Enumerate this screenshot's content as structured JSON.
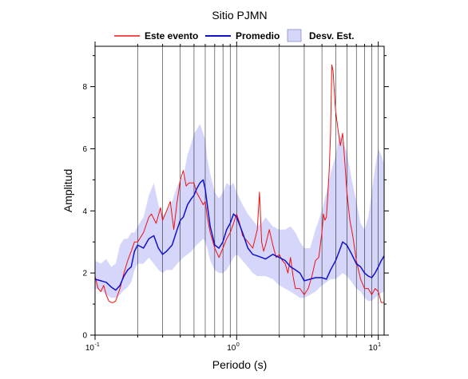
{
  "chart_data": {
    "type": "line",
    "title": "Sitio PJMN",
    "xlabel": "Periodo (s)",
    "ylabel": "Amplitud",
    "xscale": "log",
    "xlim": [
      0.1,
      11
    ],
    "ylim": [
      0,
      9.3
    ],
    "grid": "vertical log grid",
    "legend_position": "top",
    "x_ticks": [
      {
        "base": "10",
        "exp": "-1"
      },
      {
        "base": "10",
        "exp": "0"
      },
      {
        "base": "10",
        "exp": "1"
      }
    ],
    "y_ticks": [
      "0",
      "2",
      "4",
      "6",
      "8"
    ],
    "legend": {
      "este": "Este evento",
      "promedio": "Promedio",
      "desv": "Desv. Est."
    },
    "colors": {
      "este": "#ee1111",
      "promedio": "#1111cc",
      "band": "#d6d6fb"
    },
    "series": [
      {
        "name": "Este evento",
        "x": [
          0.1,
          0.105,
          0.11,
          0.115,
          0.12,
          0.125,
          0.13,
          0.135,
          0.14,
          0.15,
          0.16,
          0.17,
          0.18,
          0.19,
          0.2,
          0.22,
          0.24,
          0.25,
          0.27,
          0.29,
          0.3,
          0.32,
          0.34,
          0.36,
          0.38,
          0.4,
          0.42,
          0.44,
          0.46,
          0.48,
          0.5,
          0.52,
          0.55,
          0.58,
          0.6,
          0.62,
          0.65,
          0.7,
          0.75,
          0.8,
          0.85,
          0.9,
          0.95,
          1.0,
          1.05,
          1.1,
          1.2,
          1.3,
          1.4,
          1.45,
          1.5,
          1.55,
          1.6,
          1.7,
          1.8,
          1.9,
          2.0,
          2.1,
          2.2,
          2.3,
          2.4,
          2.5,
          2.6,
          2.8,
          3.0,
          3.2,
          3.4,
          3.6,
          3.8,
          4.0,
          4.1,
          4.2,
          4.3,
          4.4,
          4.5,
          4.6,
          4.7,
          4.8,
          4.9,
          5.0,
          5.2,
          5.4,
          5.6,
          5.8,
          6.0,
          6.3,
          6.6,
          7.0,
          7.5,
          8.0,
          8.5,
          9.0,
          9.5,
          10.0,
          10.5,
          11.0
        ],
        "y": [
          1.9,
          1.5,
          1.4,
          1.6,
          1.3,
          1.1,
          1.05,
          1.05,
          1.1,
          1.5,
          2.0,
          2.4,
          2.7,
          3.0,
          3.0,
          3.3,
          3.8,
          3.9,
          3.6,
          4.1,
          3.7,
          4.0,
          4.3,
          3.4,
          4.3,
          5.0,
          5.3,
          4.8,
          4.9,
          4.9,
          4.9,
          4.6,
          4.4,
          4.2,
          4.3,
          3.8,
          3.3,
          2.8,
          2.5,
          2.8,
          3.1,
          3.3,
          3.6,
          3.9,
          3.6,
          3.2,
          3.0,
          2.8,
          3.4,
          4.6,
          3.0,
          2.7,
          2.9,
          3.4,
          2.9,
          2.5,
          2.6,
          2.4,
          2.3,
          2.0,
          2.5,
          1.9,
          1.5,
          1.5,
          1.3,
          1.5,
          1.9,
          2.4,
          2.5,
          3.3,
          3.9,
          3.7,
          3.8,
          4.5,
          5.3,
          6.5,
          8.7,
          8.5,
          7.8,
          7.2,
          6.6,
          6.1,
          6.5,
          5.6,
          4.6,
          3.7,
          3.2,
          2.4,
          1.8,
          1.5,
          1.5,
          1.3,
          1.5,
          1.4,
          1.05,
          1.05
        ]
      },
      {
        "name": "Promedio",
        "x": [
          0.1,
          0.11,
          0.12,
          0.13,
          0.14,
          0.15,
          0.16,
          0.17,
          0.18,
          0.19,
          0.2,
          0.22,
          0.24,
          0.26,
          0.28,
          0.3,
          0.32,
          0.35,
          0.38,
          0.4,
          0.42,
          0.45,
          0.48,
          0.5,
          0.52,
          0.55,
          0.58,
          0.6,
          0.62,
          0.65,
          0.7,
          0.75,
          0.8,
          0.85,
          0.9,
          0.95,
          1.0,
          1.1,
          1.2,
          1.3,
          1.4,
          1.5,
          1.6,
          1.8,
          2.0,
          2.2,
          2.4,
          2.6,
          2.8,
          3.0,
          3.3,
          3.6,
          4.0,
          4.3,
          4.6,
          5.0,
          5.3,
          5.6,
          6.0,
          6.5,
          7.0,
          7.5,
          8.0,
          8.5,
          9.0,
          9.5,
          10.0,
          10.5,
          11.0
        ],
        "y": [
          1.8,
          1.75,
          1.7,
          1.55,
          1.45,
          1.6,
          1.9,
          2.1,
          2.2,
          2.7,
          2.9,
          2.8,
          3.1,
          3.2,
          2.8,
          2.6,
          2.7,
          2.9,
          3.4,
          3.7,
          3.8,
          4.2,
          4.4,
          4.5,
          4.7,
          4.9,
          5.0,
          4.7,
          4.2,
          3.5,
          2.9,
          2.8,
          3.0,
          3.4,
          3.6,
          3.9,
          3.8,
          3.3,
          2.8,
          2.6,
          2.55,
          2.5,
          2.45,
          2.6,
          2.5,
          2.4,
          2.2,
          2.1,
          2.0,
          1.75,
          1.8,
          1.85,
          1.85,
          1.8,
          2.1,
          2.4,
          2.7,
          3.0,
          2.9,
          2.6,
          2.3,
          2.2,
          2.0,
          1.9,
          1.85,
          2.0,
          2.2,
          2.4,
          2.55
        ]
      },
      {
        "name": "Desv. Est.",
        "x": [
          0.1,
          0.11,
          0.12,
          0.13,
          0.14,
          0.15,
          0.16,
          0.17,
          0.18,
          0.19,
          0.2,
          0.22,
          0.24,
          0.26,
          0.28,
          0.3,
          0.32,
          0.35,
          0.38,
          0.4,
          0.42,
          0.45,
          0.48,
          0.5,
          0.52,
          0.55,
          0.58,
          0.6,
          0.62,
          0.65,
          0.7,
          0.75,
          0.8,
          0.85,
          0.9,
          0.95,
          1.0,
          1.1,
          1.2,
          1.3,
          1.4,
          1.5,
          1.6,
          1.8,
          2.0,
          2.2,
          2.4,
          2.6,
          2.8,
          3.0,
          3.3,
          3.6,
          4.0,
          4.3,
          4.6,
          5.0,
          5.3,
          5.6,
          6.0,
          6.5,
          7.0,
          7.5,
          8.0,
          8.5,
          9.0,
          9.5,
          10.0,
          10.5,
          11.0
        ],
        "upper": [
          2.4,
          2.3,
          2.45,
          2.2,
          2.3,
          2.9,
          3.1,
          3.1,
          3.3,
          3.3,
          3.5,
          3.8,
          4.5,
          4.9,
          4.2,
          3.8,
          4.0,
          4.3,
          4.8,
          5.0,
          5.1,
          5.8,
          6.2,
          6.5,
          6.6,
          6.8,
          6.5,
          6.3,
          5.7,
          5.2,
          4.6,
          4.4,
          4.6,
          4.9,
          4.8,
          4.9,
          4.6,
          4.2,
          3.9,
          3.7,
          3.5,
          3.6,
          3.8,
          3.5,
          3.4,
          3.4,
          3.5,
          3.3,
          3.0,
          2.8,
          2.8,
          3.4,
          4.0,
          4.6,
          5.2,
          5.8,
          6.5,
          6.2,
          5.9,
          5.0,
          4.3,
          3.6,
          3.4,
          3.8,
          4.6,
          5.4,
          6.0,
          5.8,
          5.5
        ],
        "lower": [
          1.5,
          1.45,
          1.3,
          1.2,
          1.2,
          1.3,
          1.45,
          1.55,
          1.7,
          2.1,
          2.3,
          2.3,
          2.5,
          2.3,
          2.1,
          2.0,
          2.1,
          2.1,
          2.3,
          2.4,
          2.5,
          2.6,
          2.7,
          2.8,
          2.9,
          3.0,
          3.1,
          3.0,
          2.8,
          2.4,
          2.1,
          2.0,
          2.0,
          2.1,
          2.3,
          2.5,
          2.6,
          2.4,
          2.2,
          2.0,
          1.9,
          1.9,
          1.9,
          1.8,
          1.6,
          1.5,
          1.4,
          1.3,
          1.2,
          1.2,
          1.3,
          1.4,
          1.6,
          1.7,
          1.8,
          1.8,
          1.9,
          2.0,
          1.9,
          1.7,
          1.5,
          1.4,
          1.2,
          1.1,
          1.1,
          1.2,
          1.3,
          1.35,
          1.4
        ]
      }
    ]
  }
}
